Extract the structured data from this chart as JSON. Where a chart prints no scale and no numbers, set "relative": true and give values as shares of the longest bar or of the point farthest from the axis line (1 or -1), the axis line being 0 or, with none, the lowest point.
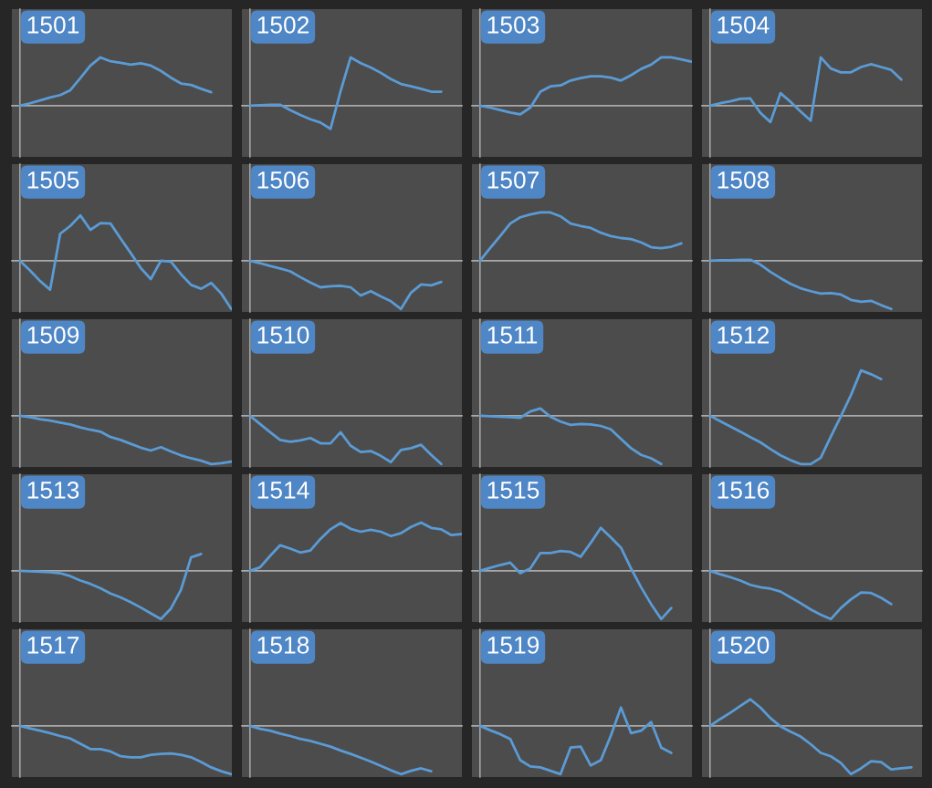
{
  "chart_data": [
    {
      "type": "line",
      "title": "1501",
      "relative": true,
      "categories": [
        null,
        null,
        null,
        null,
        null,
        null,
        null,
        null,
        null,
        null,
        null,
        null,
        null,
        null,
        null,
        null,
        null,
        null,
        null,
        null,
        null,
        null
      ],
      "series": [
        {
          "color": "#5b9bd5",
          "values": [
            0,
            0.05,
            0.11,
            0.17,
            0.22,
            0.32,
            0.57,
            0.83,
            1.0,
            0.92,
            0.89,
            0.85,
            0.88,
            0.83,
            0.72,
            0.58,
            0.46,
            0.43,
            0.35,
            0.28,
            null,
            null
          ]
        }
      ]
    },
    {
      "type": "line",
      "title": "1502",
      "relative": true,
      "categories": [
        null,
        null,
        null,
        null,
        null,
        null,
        null,
        null,
        null,
        null,
        null,
        null,
        null,
        null,
        null,
        null,
        null,
        null,
        null,
        null,
        null,
        null
      ],
      "series": [
        {
          "color": "#5b9bd5",
          "values": [
            0,
            0.01,
            0.02,
            0.02,
            -0.09,
            -0.19,
            -0.28,
            -0.35,
            -0.48,
            0.3,
            1.0,
            0.88,
            0.79,
            0.68,
            0.55,
            0.45,
            0.4,
            0.35,
            0.29,
            0.29,
            null,
            null
          ]
        }
      ]
    },
    {
      "type": "line",
      "title": "1503",
      "relative": true,
      "categories": [
        null,
        null,
        null,
        null,
        null,
        null,
        null,
        null,
        null,
        null,
        null,
        null,
        null,
        null,
        null,
        null,
        null,
        null,
        null,
        null,
        null,
        null
      ],
      "series": [
        {
          "color": "#5b9bd5",
          "values": [
            0,
            -0.04,
            -0.09,
            -0.14,
            -0.18,
            -0.04,
            0.29,
            0.4,
            0.42,
            0.52,
            0.57,
            0.61,
            0.61,
            0.58,
            0.52,
            0.63,
            0.76,
            0.85,
            1.0,
            1.0,
            0.96,
            0.91
          ]
        }
      ]
    },
    {
      "type": "line",
      "title": "1504",
      "relative": true,
      "categories": [
        null,
        null,
        null,
        null,
        null,
        null,
        null,
        null,
        null,
        null,
        null,
        null,
        null,
        null,
        null,
        null,
        null,
        null,
        null,
        null,
        null,
        null
      ],
      "series": [
        {
          "color": "#5b9bd5",
          "values": [
            0,
            0.05,
            0.09,
            0.14,
            0.15,
            -0.15,
            -0.34,
            0.26,
            0.08,
            -0.12,
            -0.31,
            1.0,
            0.77,
            0.69,
            0.69,
            0.8,
            0.86,
            0.8,
            0.74,
            0.54,
            null,
            null
          ]
        }
      ]
    },
    {
      "type": "line",
      "title": "1505",
      "relative": true,
      "categories": [
        null,
        null,
        null,
        null,
        null,
        null,
        null,
        null,
        null,
        null,
        null,
        null,
        null,
        null,
        null,
        null,
        null,
        null,
        null,
        null,
        null,
        null
      ],
      "series": [
        {
          "color": "#5b9bd5",
          "values": [
            0,
            -0.2,
            -0.42,
            -0.6,
            0.56,
            0.72,
            0.94,
            0.64,
            0.78,
            0.77,
            0.46,
            0.16,
            -0.15,
            -0.38,
            0,
            -0.02,
            -0.28,
            -0.5,
            -0.58,
            -0.46,
            -0.68,
            -1.0
          ]
        }
      ]
    },
    {
      "type": "line",
      "title": "1506",
      "relative": true,
      "categories": [
        null,
        null,
        null,
        null,
        null,
        null,
        null,
        null,
        null,
        null,
        null,
        null,
        null,
        null,
        null,
        null,
        null,
        null,
        null,
        null,
        null,
        null
      ],
      "series": [
        {
          "color": "#5b9bd5",
          "values": [
            0,
            -0.05,
            -0.11,
            -0.16,
            -0.22,
            -0.34,
            -0.45,
            -0.55,
            -0.53,
            -0.52,
            -0.55,
            -0.72,
            -0.63,
            -0.74,
            -0.84,
            -1.0,
            -0.66,
            -0.49,
            -0.51,
            -0.44,
            null,
            null
          ]
        }
      ]
    },
    {
      "type": "line",
      "title": "1507",
      "relative": true,
      "categories": [
        null,
        null,
        null,
        null,
        null,
        null,
        null,
        null,
        null,
        null,
        null,
        null,
        null,
        null,
        null,
        null,
        null,
        null,
        null,
        null,
        null,
        null
      ],
      "series": [
        {
          "color": "#5b9bd5",
          "values": [
            0,
            0.26,
            0.51,
            0.77,
            0.9,
            0.96,
            1.0,
            1.0,
            0.92,
            0.77,
            0.72,
            0.68,
            0.58,
            0.51,
            0.47,
            0.45,
            0.38,
            0.28,
            0.26,
            0.29,
            0.36,
            null
          ]
        }
      ]
    },
    {
      "type": "line",
      "title": "1508",
      "relative": true,
      "categories": [
        null,
        null,
        null,
        null,
        null,
        null,
        null,
        null,
        null,
        null,
        null,
        null,
        null,
        null,
        null,
        null,
        null,
        null,
        null,
        null,
        null,
        null
      ],
      "series": [
        {
          "color": "#5b9bd5",
          "values": [
            0,
            0.01,
            0.01,
            0.02,
            0.02,
            -0.08,
            -0.23,
            -0.36,
            -0.48,
            -0.57,
            -0.63,
            -0.68,
            -0.67,
            -0.7,
            -0.81,
            -0.85,
            -0.83,
            -0.92,
            -1.0,
            null,
            null,
            null
          ]
        }
      ]
    },
    {
      "type": "line",
      "title": "1509",
      "relative": true,
      "categories": [
        null,
        null,
        null,
        null,
        null,
        null,
        null,
        null,
        null,
        null,
        null,
        null,
        null,
        null,
        null,
        null,
        null,
        null,
        null,
        null,
        null,
        null
      ],
      "series": [
        {
          "color": "#5b9bd5",
          "values": [
            0,
            -0.03,
            -0.07,
            -0.1,
            -0.14,
            -0.18,
            -0.24,
            -0.29,
            -0.33,
            -0.44,
            -0.5,
            -0.58,
            -0.66,
            -0.72,
            -0.65,
            -0.74,
            -0.82,
            -0.88,
            -0.93,
            -1.0,
            -0.98,
            -0.95
          ]
        }
      ]
    },
    {
      "type": "line",
      "title": "1510",
      "relative": true,
      "categories": [
        null,
        null,
        null,
        null,
        null,
        null,
        null,
        null,
        null,
        null,
        null,
        null,
        null,
        null,
        null,
        null,
        null,
        null,
        null,
        null,
        null,
        null
      ],
      "series": [
        {
          "color": "#5b9bd5",
          "values": [
            0,
            -0.17,
            -0.34,
            -0.5,
            -0.54,
            -0.51,
            -0.46,
            -0.57,
            -0.57,
            -0.34,
            -0.62,
            -0.75,
            -0.73,
            -0.83,
            -0.96,
            -0.71,
            -0.67,
            -0.6,
            -0.81,
            -1.0,
            null,
            null
          ]
        }
      ]
    },
    {
      "type": "line",
      "title": "1511",
      "relative": true,
      "categories": [
        null,
        null,
        null,
        null,
        null,
        null,
        null,
        null,
        null,
        null,
        null,
        null,
        null,
        null,
        null,
        null,
        null,
        null,
        null,
        null,
        null,
        null
      ],
      "series": [
        {
          "color": "#5b9bd5",
          "values": [
            0,
            -0.01,
            -0.02,
            -0.03,
            -0.04,
            0.09,
            0.15,
            -0.02,
            -0.12,
            -0.19,
            -0.17,
            -0.18,
            -0.21,
            -0.28,
            -0.48,
            -0.67,
            -0.81,
            -0.88,
            -1.0,
            null,
            null,
            null
          ]
        }
      ]
    },
    {
      "type": "line",
      "title": "1512",
      "relative": true,
      "categories": [
        null,
        null,
        null,
        null,
        null,
        null,
        null,
        null,
        null,
        null,
        null,
        null,
        null,
        null,
        null,
        null,
        null,
        null,
        null,
        null,
        null,
        null
      ],
      "series": [
        {
          "color": "#5b9bd5",
          "values": [
            0,
            -0.11,
            -0.22,
            -0.33,
            -0.44,
            -0.55,
            -0.69,
            -0.82,
            -0.92,
            -1.0,
            -1.0,
            -0.87,
            -0.43,
            -0.01,
            0.43,
            0.94,
            0.86,
            0.76,
            null,
            null,
            null,
            null
          ]
        }
      ]
    },
    {
      "type": "line",
      "title": "1513",
      "relative": true,
      "categories": [
        null,
        null,
        null,
        null,
        null,
        null,
        null,
        null,
        null,
        null,
        null,
        null,
        null,
        null,
        null,
        null,
        null,
        null,
        null,
        null,
        null,
        null
      ],
      "series": [
        {
          "color": "#5b9bd5",
          "values": [
            0,
            -0.01,
            -0.02,
            -0.03,
            -0.05,
            -0.11,
            -0.2,
            -0.27,
            -0.36,
            -0.47,
            -0.55,
            -0.65,
            -0.76,
            -0.88,
            -1.0,
            -0.78,
            -0.39,
            0.28,
            0.35,
            null,
            null,
            null
          ]
        }
      ]
    },
    {
      "type": "line",
      "title": "1514",
      "relative": true,
      "categories": [
        null,
        null,
        null,
        null,
        null,
        null,
        null,
        null,
        null,
        null,
        null,
        null,
        null,
        null,
        null,
        null,
        null,
        null,
        null,
        null,
        null,
        null
      ],
      "series": [
        {
          "color": "#5b9bd5",
          "values": [
            0,
            0.07,
            0.31,
            0.53,
            0.46,
            0.38,
            0.42,
            0.66,
            0.86,
            0.99,
            0.87,
            0.81,
            0.85,
            0.81,
            0.72,
            0.78,
            0.91,
            1.0,
            0.89,
            0.86,
            0.74,
            0.76
          ]
        }
      ]
    },
    {
      "type": "line",
      "title": "1515",
      "relative": true,
      "categories": [
        null,
        null,
        null,
        null,
        null,
        null,
        null,
        null,
        null,
        null,
        null,
        null,
        null,
        null,
        null,
        null,
        null,
        null,
        null,
        null,
        null,
        null
      ],
      "series": [
        {
          "color": "#5b9bd5",
          "values": [
            0,
            0.06,
            0.12,
            0.17,
            -0.05,
            0.05,
            0.37,
            0.37,
            0.41,
            0.39,
            0.29,
            0.58,
            0.89,
            0.69,
            0.48,
            0.05,
            -0.34,
            -0.69,
            -1.0,
            -0.77,
            null,
            null
          ]
        }
      ]
    },
    {
      "type": "line",
      "title": "1516",
      "relative": true,
      "categories": [
        null,
        null,
        null,
        null,
        null,
        null,
        null,
        null,
        null,
        null,
        null,
        null,
        null,
        null,
        null,
        null,
        null,
        null,
        null,
        null,
        null,
        null
      ],
      "series": [
        {
          "color": "#5b9bd5",
          "values": [
            0,
            -0.07,
            -0.13,
            -0.2,
            -0.29,
            -0.34,
            -0.37,
            -0.43,
            -0.55,
            -0.67,
            -0.8,
            -0.91,
            -1.0,
            -0.77,
            -0.59,
            -0.45,
            -0.46,
            -0.56,
            -0.69,
            null,
            null,
            null
          ]
        }
      ]
    },
    {
      "type": "line",
      "title": "1517",
      "relative": true,
      "categories": [
        null,
        null,
        null,
        null,
        null,
        null,
        null,
        null,
        null,
        null,
        null,
        null,
        null,
        null,
        null,
        null,
        null,
        null,
        null,
        null,
        null,
        null
      ],
      "series": [
        {
          "color": "#5b9bd5",
          "values": [
            0,
            -0.05,
            -0.1,
            -0.15,
            -0.21,
            -0.26,
            -0.37,
            -0.48,
            -0.48,
            -0.53,
            -0.63,
            -0.65,
            -0.65,
            -0.6,
            -0.58,
            -0.57,
            -0.6,
            -0.65,
            -0.75,
            -0.86,
            -0.94,
            -1.0
          ]
        }
      ]
    },
    {
      "type": "line",
      "title": "1518",
      "relative": true,
      "categories": [
        null,
        null,
        null,
        null,
        null,
        null,
        null,
        null,
        null,
        null,
        null,
        null,
        null,
        null,
        null,
        null,
        null,
        null,
        null,
        null,
        null,
        null
      ],
      "series": [
        {
          "color": "#5b9bd5",
          "values": [
            0,
            -0.06,
            -0.1,
            -0.16,
            -0.21,
            -0.27,
            -0.31,
            -0.37,
            -0.43,
            -0.51,
            -0.58,
            -0.66,
            -0.74,
            -0.83,
            -0.92,
            -1.0,
            -0.93,
            -0.88,
            -0.94,
            null,
            null,
            null
          ]
        }
      ]
    },
    {
      "type": "line",
      "title": "1519",
      "relative": true,
      "categories": [
        null,
        null,
        null,
        null,
        null,
        null,
        null,
        null,
        null,
        null,
        null,
        null,
        null,
        null,
        null,
        null,
        null,
        null,
        null,
        null,
        null,
        null
      ],
      "series": [
        {
          "color": "#5b9bd5",
          "values": [
            0,
            -0.09,
            -0.17,
            -0.27,
            -0.71,
            -0.84,
            -0.86,
            -0.93,
            -1.0,
            -0.45,
            -0.43,
            -0.82,
            -0.71,
            -0.2,
            0.38,
            -0.15,
            -0.1,
            0.08,
            -0.45,
            -0.56,
            null,
            null
          ]
        }
      ]
    },
    {
      "type": "line",
      "title": "1520",
      "relative": true,
      "categories": [
        null,
        null,
        null,
        null,
        null,
        null,
        null,
        null,
        null,
        null,
        null,
        null,
        null,
        null,
        null,
        null,
        null,
        null,
        null,
        null,
        null,
        null
      ],
      "series": [
        {
          "color": "#5b9bd5",
          "values": [
            0,
            0.14,
            0.27,
            0.41,
            0.55,
            0.38,
            0.16,
            -0.01,
            -0.12,
            -0.22,
            -0.38,
            -0.56,
            -0.63,
            -0.77,
            -1.0,
            -0.88,
            -0.73,
            -0.75,
            -0.9,
            -0.88,
            -0.86,
            null
          ]
        }
      ]
    }
  ]
}
